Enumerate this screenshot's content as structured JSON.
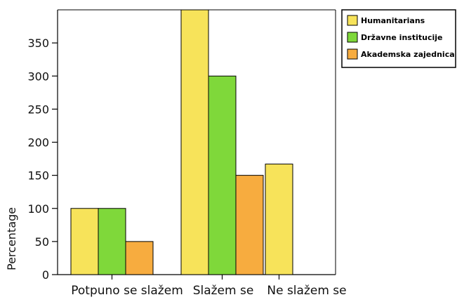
{
  "chart_data": {
    "type": "bar",
    "title": "",
    "xlabel": "",
    "ylabel": "Percentage",
    "ylim": [
      0,
      400
    ],
    "yticks": [
      0,
      50,
      100,
      150,
      200,
      250,
      300,
      350
    ],
    "grid": false,
    "legend_position": "top-right",
    "categories": [
      "Potpuno se slažem",
      "Slažem se",
      "Ne slažem se"
    ],
    "series": [
      {
        "name": "Humanitarians",
        "color": "#f7e35a",
        "values": [
          100,
          400,
          167
        ]
      },
      {
        "name": "Državne institucije",
        "color": "#7fd83a",
        "values": [
          100,
          300,
          null
        ]
      },
      {
        "name": "Akademska zajednica",
        "color": "#f7ac3f",
        "values": [
          50,
          150,
          null
        ]
      }
    ]
  }
}
